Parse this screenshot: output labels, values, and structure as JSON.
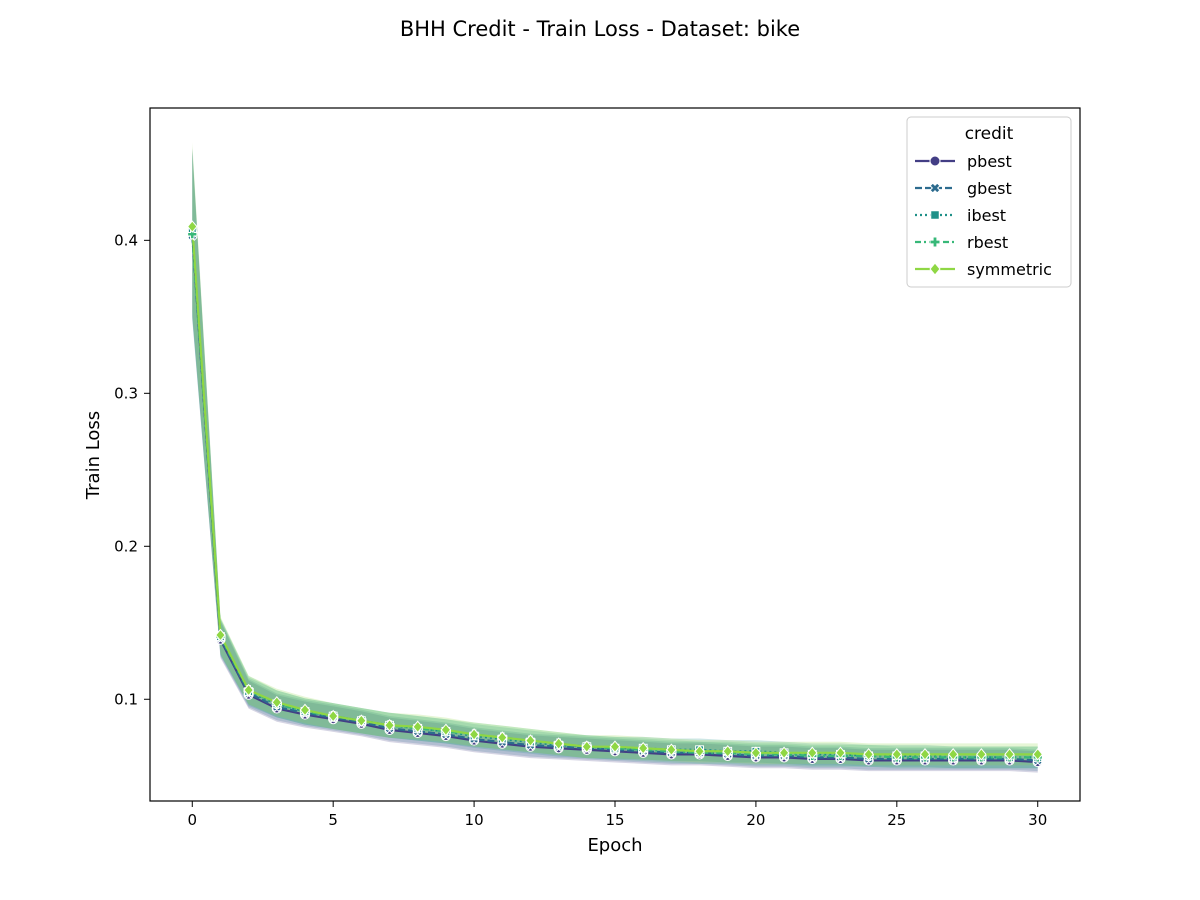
{
  "chart_data": {
    "type": "line",
    "title": "BHH Credit - Train Loss - Dataset: bike",
    "xlabel": "Epoch",
    "ylabel": "Train Loss",
    "xlim": [
      -1.5,
      31.5
    ],
    "ylim": [
      0.0335,
      0.4865
    ],
    "xticks": [
      0,
      5,
      10,
      15,
      20,
      25,
      30
    ],
    "yticks": [
      0.1,
      0.2,
      0.3,
      0.4
    ],
    "grid": false,
    "legend": {
      "title": "credit",
      "placement": "upper right"
    },
    "x": [
      0,
      1,
      2,
      3,
      4,
      5,
      6,
      7,
      8,
      9,
      10,
      11,
      12,
      13,
      14,
      15,
      16,
      17,
      18,
      19,
      20,
      21,
      22,
      23,
      24,
      25,
      26,
      27,
      28,
      29,
      30
    ],
    "series": [
      {
        "name": "pbest",
        "color": "#433e85",
        "dash": "solid",
        "marker": "circle",
        "values": [
          0.405,
          0.139,
          0.103,
          0.094,
          0.09,
          0.087,
          0.084,
          0.08,
          0.078,
          0.076,
          0.073,
          0.071,
          0.069,
          0.068,
          0.067,
          0.066,
          0.065,
          0.064,
          0.064,
          0.063,
          0.062,
          0.062,
          0.061,
          0.061,
          0.06,
          0.06,
          0.06,
          0.06,
          0.06,
          0.06,
          0.059
        ]
      },
      {
        "name": "gbest",
        "color": "#2c6b8e",
        "dash": "dashed",
        "marker": "x",
        "values": [
          0.403,
          0.14,
          0.104,
          0.095,
          0.091,
          0.088,
          0.085,
          0.081,
          0.079,
          0.077,
          0.074,
          0.072,
          0.07,
          0.069,
          0.068,
          0.067,
          0.066,
          0.065,
          0.065,
          0.064,
          0.063,
          0.063,
          0.062,
          0.062,
          0.061,
          0.061,
          0.061,
          0.061,
          0.061,
          0.061,
          0.06
        ]
      },
      {
        "name": "ibest",
        "color": "#1f9088",
        "dash": "dotted",
        "marker": "square",
        "values": [
          0.406,
          0.141,
          0.105,
          0.097,
          0.092,
          0.089,
          0.086,
          0.083,
          0.081,
          0.079,
          0.076,
          0.074,
          0.072,
          0.07,
          0.069,
          0.068,
          0.068,
          0.067,
          0.067,
          0.066,
          0.066,
          0.065,
          0.064,
          0.064,
          0.063,
          0.063,
          0.063,
          0.062,
          0.062,
          0.062,
          0.062
        ]
      },
      {
        "name": "rbest",
        "color": "#37b878",
        "dash": "dashdot",
        "marker": "plus",
        "values": [
          0.404,
          0.141,
          0.106,
          0.097,
          0.092,
          0.089,
          0.086,
          0.083,
          0.081,
          0.079,
          0.077,
          0.075,
          0.073,
          0.071,
          0.069,
          0.068,
          0.067,
          0.066,
          0.065,
          0.065,
          0.064,
          0.064,
          0.063,
          0.063,
          0.063,
          0.062,
          0.062,
          0.062,
          0.062,
          0.062,
          0.062
        ]
      },
      {
        "name": "symmetric",
        "color": "#8fd744",
        "dash": "solid",
        "marker": "diamond",
        "values": [
          0.409,
          0.142,
          0.106,
          0.098,
          0.093,
          0.089,
          0.086,
          0.083,
          0.082,
          0.08,
          0.077,
          0.075,
          0.073,
          0.071,
          0.069,
          0.069,
          0.068,
          0.067,
          0.066,
          0.066,
          0.065,
          0.065,
          0.065,
          0.065,
          0.064,
          0.064,
          0.064,
          0.064,
          0.064,
          0.064,
          0.064
        ]
      }
    ]
  }
}
